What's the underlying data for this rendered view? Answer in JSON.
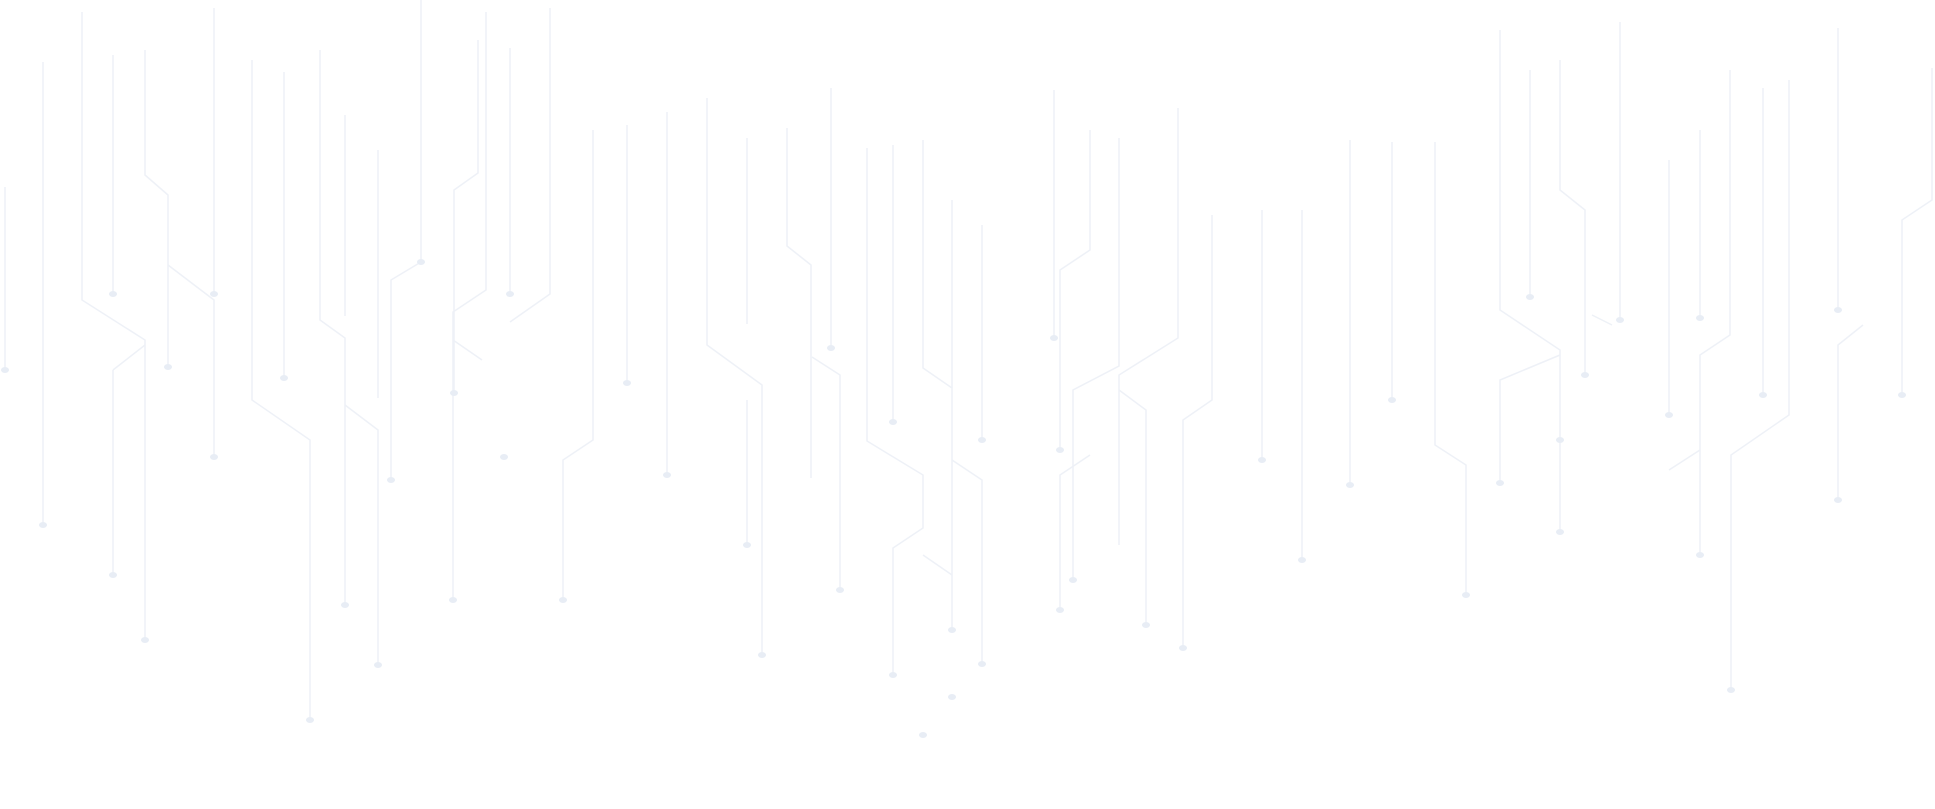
{
  "background": {
    "pattern": "circuit-traces",
    "line_color": "#eef1f7",
    "dot_color": "#e8edf5",
    "background_color": "#ffffff"
  }
}
